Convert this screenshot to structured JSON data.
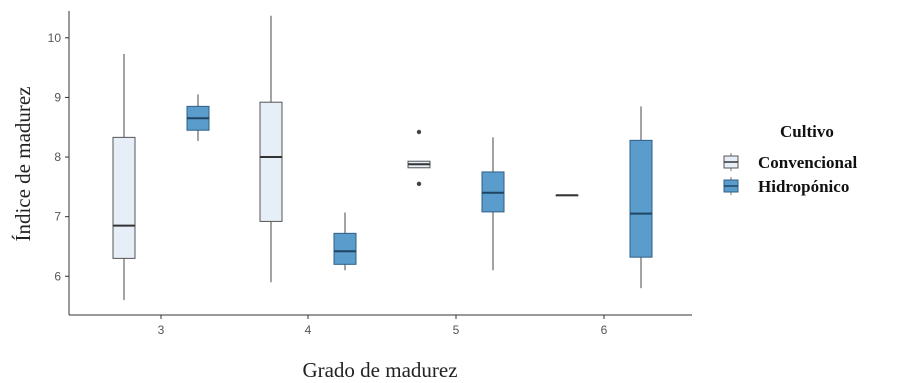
{
  "chart_data": {
    "type": "boxplot",
    "xlabel": "Grado de madurez",
    "ylabel": "Índice de madurez",
    "categories": [
      "3",
      "4",
      "5",
      "6"
    ],
    "yticks": [
      6,
      7,
      8,
      9,
      10
    ],
    "ylim": [
      5.35,
      10.45
    ],
    "grid": false,
    "legend": {
      "title": "Cultivo",
      "position": "right"
    },
    "series": [
      {
        "name": "Convencional",
        "color": "#e6eef7",
        "boxes": [
          {
            "category": "3",
            "whisker_low": 5.6,
            "q1": 6.3,
            "median": 6.85,
            "q3": 8.33,
            "whisker_high": 9.73,
            "outliers": []
          },
          {
            "category": "4",
            "whisker_low": 5.9,
            "q1": 6.92,
            "median": 8.0,
            "q3": 8.92,
            "whisker_high": 10.37,
            "outliers": []
          },
          {
            "category": "5",
            "whisker_low": 7.82,
            "q1": 7.82,
            "median": 7.88,
            "q3": 7.93,
            "whisker_high": 7.93,
            "outliers": [
              8.42,
              7.55
            ]
          },
          {
            "category": "6",
            "whisker_low": 7.36,
            "q1": 7.36,
            "median": 7.36,
            "q3": 7.36,
            "whisker_high": 7.36,
            "outliers": []
          }
        ]
      },
      {
        "name": "Hidropónico",
        "color": "#5a9ccb",
        "boxes": [
          {
            "category": "3",
            "whisker_low": 8.27,
            "q1": 8.45,
            "median": 8.65,
            "q3": 8.85,
            "whisker_high": 9.05,
            "outliers": []
          },
          {
            "category": "4",
            "whisker_low": 6.1,
            "q1": 6.2,
            "median": 6.42,
            "q3": 6.72,
            "whisker_high": 7.07,
            "outliers": []
          },
          {
            "category": "5",
            "whisker_low": 6.1,
            "q1": 7.08,
            "median": 7.4,
            "q3": 7.75,
            "whisker_high": 8.33,
            "outliers": []
          },
          {
            "category": "6",
            "whisker_low": 5.8,
            "q1": 6.32,
            "median": 7.05,
            "q3": 8.28,
            "whisker_high": 8.85,
            "outliers": []
          }
        ]
      }
    ]
  }
}
